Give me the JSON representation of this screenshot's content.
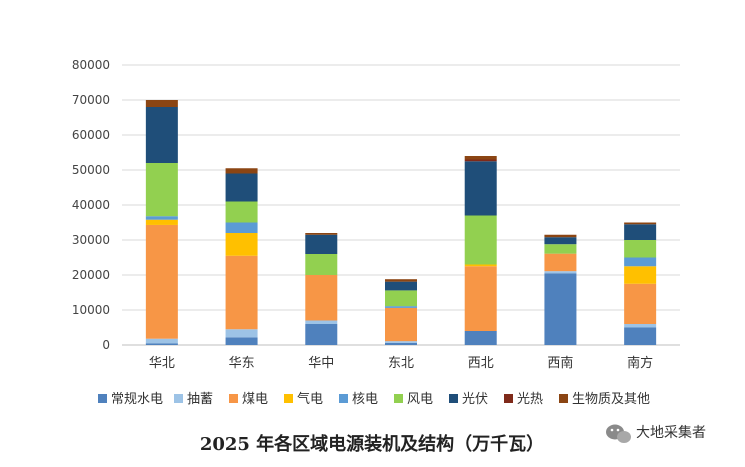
{
  "chart_data": {
    "type": "bar",
    "stacked": true,
    "title": "2025 年各区域电源装机及结构（万千瓦）",
    "xlabel": "",
    "ylabel": "",
    "ylim": [
      0,
      80000
    ],
    "yticks": [
      "0",
      "10000",
      "20000",
      "30000",
      "40000",
      "50000",
      "60000",
      "70000",
      "80000"
    ],
    "grid": true,
    "legend_position": "bottom",
    "categories": [
      "华北",
      "华东",
      "华中",
      "东北",
      "西北",
      "西南",
      "南方"
    ],
    "series": [
      {
        "name": "常规水电",
        "color": "#4F81BD",
        "values": [
          500,
          2200,
          6000,
          600,
          4000,
          20500,
          5000
        ]
      },
      {
        "name": "抽蓄",
        "color": "#9DC3E6",
        "values": [
          1300,
          2300,
          1000,
          500,
          0,
          600,
          1000
        ]
      },
      {
        "name": "煤电",
        "color": "#F79646",
        "values": [
          32500,
          21000,
          13000,
          9500,
          18500,
          5000,
          11500
        ]
      },
      {
        "name": "气电",
        "color": "#FFC000",
        "values": [
          1500,
          6500,
          0,
          0,
          500,
          0,
          5000
        ]
      },
      {
        "name": "核电",
        "color": "#5B9BD5",
        "values": [
          1000,
          3000,
          0,
          500,
          0,
          0,
          2500
        ]
      },
      {
        "name": "风电",
        "color": "#92D050",
        "values": [
          15200,
          6000,
          6000,
          4500,
          14000,
          2700,
          5000
        ]
      },
      {
        "name": "光伏",
        "color": "#1F4E79",
        "values": [
          16000,
          8000,
          5500,
          2500,
          15500,
          2000,
          4500
        ]
      },
      {
        "name": "光热",
        "color": "#7F2A1A",
        "values": [
          0,
          0,
          0,
          0,
          500,
          0,
          0
        ]
      },
      {
        "name": "生物质及其他",
        "color": "#8B4513",
        "values": [
          2000,
          1500,
          500,
          700,
          1000,
          700,
          500
        ]
      }
    ]
  },
  "watermark": {
    "text": "大地采集者",
    "icon": "wechat-icon"
  }
}
